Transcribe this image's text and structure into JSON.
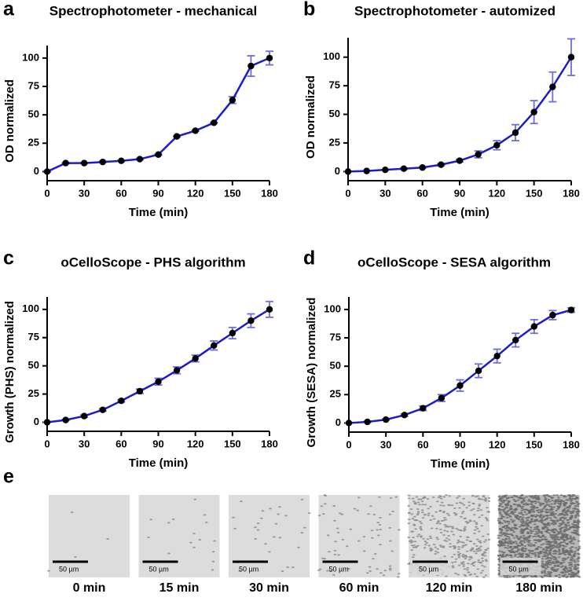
{
  "chart_data": [
    {
      "panel": "a",
      "type": "line",
      "title": "Spectrophotometer - mechanical",
      "xlabel": "Time (min)",
      "ylabel": "OD normalized",
      "x": [
        0,
        15,
        30,
        45,
        60,
        75,
        90,
        105,
        120,
        135,
        150,
        165,
        180
      ],
      "values": [
        0,
        7.5,
        7.5,
        8.5,
        9.5,
        11,
        15,
        31,
        36,
        43,
        63,
        93,
        100
      ],
      "errors": [
        0.5,
        0.5,
        0.5,
        0.5,
        0.5,
        0.5,
        0.5,
        0.5,
        0.5,
        0.5,
        3,
        9,
        6
      ],
      "color": "#1c1ccc",
      "error_color": "#6e6ed8",
      "marker_color": "#000000",
      "xlim": [
        0,
        180
      ],
      "ylim": [
        -8,
        111
      ],
      "xticks": [
        0,
        30,
        60,
        90,
        120,
        150,
        180
      ],
      "yticks": [
        0,
        25,
        50,
        75,
        100
      ]
    },
    {
      "panel": "b",
      "type": "line",
      "title": "Spectrophotometer - automized",
      "xlabel": "Time (min)",
      "ylabel": "OD normalized",
      "x": [
        0,
        15,
        30,
        45,
        60,
        75,
        90,
        105,
        120,
        135,
        150,
        165,
        180
      ],
      "values": [
        0,
        0.5,
        1.5,
        2.5,
        3.5,
        6,
        9.5,
        15,
        23,
        34,
        52,
        74,
        100
      ],
      "errors": [
        0,
        0,
        0,
        0.5,
        0.5,
        1,
        1,
        3,
        4,
        7,
        10,
        13,
        16
      ],
      "color": "#1c1ccc",
      "error_color": "#6e6ed8",
      "marker_color": "#000000",
      "xlim": [
        0,
        180
      ],
      "ylim": [
        -8,
        117
      ],
      "xticks": [
        0,
        30,
        60,
        90,
        120,
        150,
        180
      ],
      "yticks": [
        0,
        25,
        50,
        75,
        100
      ]
    },
    {
      "panel": "c",
      "type": "line",
      "title": "oCelloScope - PHS algorithm",
      "xlabel": "Time (min)",
      "ylabel": "Growth (PHS) normalized",
      "x": [
        0,
        15,
        30,
        45,
        60,
        75,
        90,
        105,
        120,
        135,
        150,
        165,
        180
      ],
      "values": [
        0,
        2,
        5.5,
        11,
        19,
        27.5,
        36,
        46,
        56.5,
        68,
        79,
        90,
        100
      ],
      "errors": [
        0,
        0.5,
        1,
        1,
        1,
        2,
        3,
        3,
        3,
        4,
        5,
        6,
        7
      ],
      "color": "#1c1ccc",
      "error_color": "#6e6ed8",
      "marker_color": "#000000",
      "xlim": [
        0,
        180
      ],
      "ylim": [
        -8,
        111
      ],
      "xticks": [
        0,
        30,
        60,
        90,
        120,
        150,
        180
      ],
      "yticks": [
        0,
        25,
        50,
        75,
        100
      ]
    },
    {
      "panel": "d",
      "type": "line",
      "title": "oCelloScope - SESA algorithm",
      "xlabel": "Time (min)",
      "ylabel": "Growth (SESA) normalized",
      "x": [
        0,
        15,
        30,
        45,
        60,
        75,
        90,
        105,
        120,
        135,
        150,
        165,
        180
      ],
      "values": [
        0,
        1,
        3,
        7,
        13,
        22,
        33,
        46,
        59,
        73,
        85,
        95,
        99.5
      ],
      "errors": [
        0,
        0.5,
        0.5,
        1,
        2,
        3,
        5,
        6,
        6,
        6,
        6,
        4,
        2
      ],
      "color": "#1c1ccc",
      "error_color": "#6e6ed8",
      "marker_color": "#000000",
      "xlim": [
        0,
        180
      ],
      "ylim": [
        -8,
        111
      ],
      "xticks": [
        0,
        30,
        60,
        90,
        120,
        150,
        180
      ],
      "yticks": [
        0,
        25,
        50,
        75,
        100
      ]
    }
  ],
  "images": {
    "panel": "e",
    "scale_bar": "50 µm",
    "captions": [
      "0 min",
      "15 min",
      "30 min",
      "60 min",
      "120 min",
      "180 min"
    ]
  }
}
